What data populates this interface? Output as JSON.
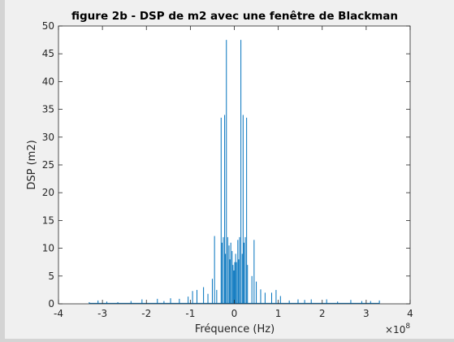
{
  "chart_data": {
    "type": "line",
    "title": "figure 2b - DSP de m2 avec une fenêtre de Blackman",
    "xlabel": "Fréquence (Hz)",
    "ylabel": "DSP (m2)",
    "x_exponent_label": "×10",
    "x_exponent_power": "8",
    "xlim": [
      -4,
      4
    ],
    "ylim": [
      0,
      50
    ],
    "x_unit_scale": 100000000,
    "xticks": [
      "-4",
      "-3",
      "-2",
      "-1",
      "0",
      "1",
      "2",
      "3",
      "4"
    ],
    "yticks": [
      "0",
      "5",
      "10",
      "15",
      "20",
      "25",
      "30",
      "35",
      "40",
      "45",
      "50"
    ],
    "grid": false,
    "line_color": "#0072bd",
    "series": [
      {
        "x": [
          -3.3,
          -3.1,
          -2.9,
          -2.65,
          -2.35,
          -2.1,
          -1.75,
          -1.6,
          -1.45,
          -1.25,
          -1.05,
          -0.95,
          -0.85,
          -0.7,
          -0.6,
          -0.5,
          -0.45,
          -0.4,
          -0.3,
          -0.28,
          -0.25,
          -0.22,
          -0.2,
          -0.18,
          -0.15,
          -0.12,
          -0.1,
          -0.08,
          -0.05,
          -0.03,
          -0.01,
          0.01,
          0.03,
          0.05,
          0.08,
          0.1,
          0.12,
          0.15,
          0.18,
          0.2,
          0.22,
          0.25,
          0.28,
          0.3,
          0.4,
          0.45,
          0.5,
          0.6,
          0.7,
          0.85,
          0.95,
          1.05,
          1.25,
          1.45,
          1.6,
          1.75,
          2.1,
          2.35,
          2.65,
          2.9,
          3.1,
          3.3
        ],
        "y": [
          0.3,
          0.6,
          0.4,
          0.3,
          0.5,
          0.8,
          0.9,
          0.5,
          1.0,
          0.9,
          1.3,
          2.3,
          2.5,
          3.0,
          1.8,
          4.5,
          12.2,
          2.5,
          33.5,
          11.0,
          12.0,
          34.0,
          9.0,
          47.5,
          12.0,
          10.5,
          8.0,
          11.0,
          9.5,
          7.0,
          6.0,
          7.5,
          9.0,
          7.5,
          11.5,
          8.0,
          12.0,
          47.5,
          9.0,
          34.0,
          11.0,
          12.0,
          33.5,
          7.0,
          5.0,
          11.5,
          4.0,
          2.6,
          2.0,
          2.0,
          2.5,
          1.4,
          0.6,
          0.8,
          0.7,
          0.8,
          0.8,
          0.4,
          0.7,
          0.5,
          0.5,
          0.6
        ]
      }
    ]
  }
}
